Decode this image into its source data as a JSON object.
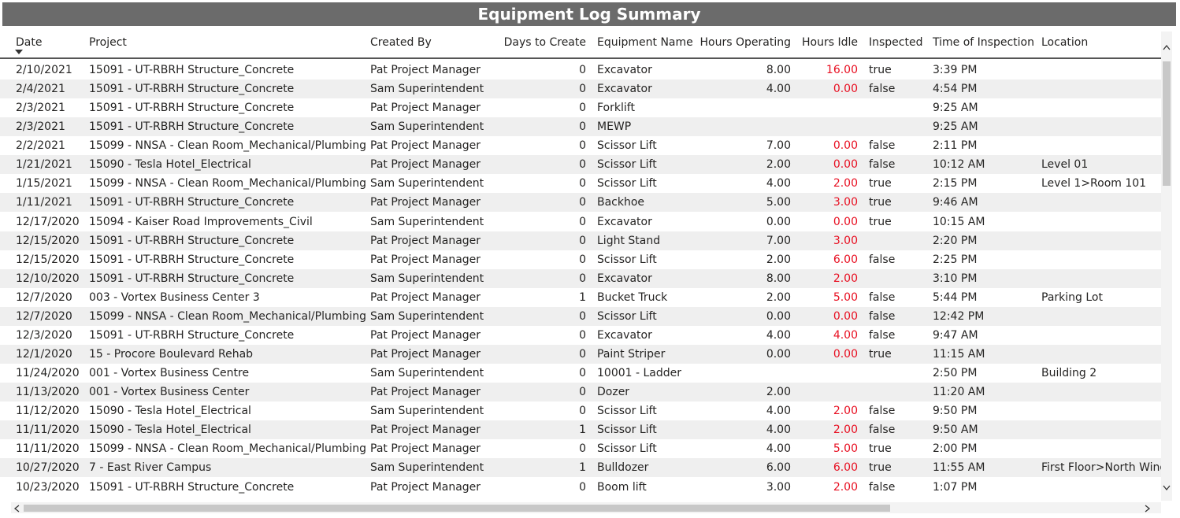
{
  "header": {
    "title": "Equipment Log Summary"
  },
  "table": {
    "columns": [
      "Date",
      "Project",
      "Created By",
      "Days to Create",
      "Equipment Name",
      "Hours Operating",
      "Hours Idle",
      "Inspected",
      "Time of Inspection",
      "Location"
    ],
    "rows": [
      [
        "2/10/2021",
        "15091 - UT-RBRH Structure_Concrete",
        "Pat Project Manager",
        "0",
        "Excavator",
        "8.00",
        "16.00",
        "true",
        "3:39 PM",
        null
      ],
      [
        "2/4/2021",
        "15091 - UT-RBRH Structure_Concrete",
        "Sam Superintendent",
        "0",
        "Excavator",
        "4.00",
        "0.00",
        "false",
        "4:54 PM",
        null
      ],
      [
        "2/3/2021",
        "15091 - UT-RBRH Structure_Concrete",
        "Pat Project Manager",
        "0",
        "Forklift",
        null,
        null,
        null,
        "9:25 AM",
        null
      ],
      [
        "2/3/2021",
        "15091 - UT-RBRH Structure_Concrete",
        "Sam Superintendent",
        "0",
        "MEWP",
        null,
        null,
        null,
        "9:25 AM",
        null
      ],
      [
        "2/2/2021",
        "15099 - NNSA - Clean Room_Mechanical/Plumbing",
        "Pat Project Manager",
        "0",
        "Scissor Lift",
        "7.00",
        "0.00",
        "false",
        "2:11 PM",
        null
      ],
      [
        "1/21/2021",
        "15090 - Tesla Hotel_Electrical",
        "Pat Project Manager",
        "0",
        "Scissor Lift",
        "2.00",
        "0.00",
        "false",
        "10:12 AM",
        "Level 01"
      ],
      [
        "1/15/2021",
        "15099 - NNSA - Clean Room_Mechanical/Plumbing",
        "Sam Superintendent",
        "0",
        "Scissor Lift",
        "4.00",
        "2.00",
        "true",
        "2:15 PM",
        "Level 1>Room 101"
      ],
      [
        "1/11/2021",
        "15091 - UT-RBRH Structure_Concrete",
        "Pat Project Manager",
        "0",
        "Backhoe",
        "5.00",
        "3.00",
        "true",
        "9:46 AM",
        null
      ],
      [
        "12/17/2020",
        "15094 - Kaiser Road Improvements_Civil",
        "Sam Superintendent",
        "0",
        "Excavator",
        "0.00",
        "0.00",
        "true",
        "10:15 AM",
        null
      ],
      [
        "12/15/2020",
        "15091 - UT-RBRH Structure_Concrete",
        "Pat Project Manager",
        "0",
        "Light Stand",
        "7.00",
        "3.00",
        null,
        "2:20 PM",
        null
      ],
      [
        "12/15/2020",
        "15091 - UT-RBRH Structure_Concrete",
        "Pat Project Manager",
        "0",
        "Scissor Lift",
        "2.00",
        "6.00",
        "false",
        "2:25 PM",
        null
      ],
      [
        "12/10/2020",
        "15091 - UT-RBRH Structure_Concrete",
        "Sam Superintendent",
        "0",
        "Excavator",
        "8.00",
        "2.00",
        null,
        "3:10 PM",
        null
      ],
      [
        "12/7/2020",
        "003 - Vortex Business Center 3",
        "Pat Project Manager",
        "1",
        "Bucket Truck",
        "2.00",
        "5.00",
        "false",
        "5:44 PM",
        "Parking Lot"
      ],
      [
        "12/7/2020",
        "15099 - NNSA - Clean Room_Mechanical/Plumbing",
        "Sam Superintendent",
        "0",
        "Scissor Lift",
        "0.00",
        "0.00",
        "false",
        "12:42 PM",
        null
      ],
      [
        "12/3/2020",
        "15091 - UT-RBRH Structure_Concrete",
        "Pat Project Manager",
        "0",
        "Excavator",
        "4.00",
        "4.00",
        "false",
        "9:47 AM",
        null
      ],
      [
        "12/1/2020",
        "15 - Procore Boulevard Rehab",
        "Pat Project Manager",
        "0",
        "Paint Striper",
        "0.00",
        "0.00",
        "true",
        "11:15 AM",
        null
      ],
      [
        "11/24/2020",
        "001 - Vortex Business Centre",
        "Sam Superintendent",
        "0",
        "10001 - Ladder",
        null,
        null,
        null,
        "2:50 PM",
        "Building 2"
      ],
      [
        "11/13/2020",
        "001 - Vortex Business Center",
        "Pat Project Manager",
        "0",
        "Dozer",
        "2.00",
        null,
        null,
        "11:20 AM",
        null
      ],
      [
        "11/12/2020",
        "15090 - Tesla Hotel_Electrical",
        "Sam Superintendent",
        "0",
        "Scissor Lift",
        "4.00",
        "2.00",
        "false",
        "9:50 PM",
        null
      ],
      [
        "11/11/2020",
        "15090 - Tesla Hotel_Electrical",
        "Pat Project Manager",
        "1",
        "Scissor Lift",
        "4.00",
        "2.00",
        "false",
        "9:50 AM",
        null
      ],
      [
        "11/11/2020",
        "15099 - NNSA - Clean Room_Mechanical/Plumbing",
        "Pat Project Manager",
        "0",
        "Scissor Lift",
        "4.00",
        "5.00",
        "true",
        "2:00 PM",
        null
      ],
      [
        "10/27/2020",
        "7 - East River Campus",
        "Sam Superintendent",
        "1",
        "Bulldozer",
        "6.00",
        "6.00",
        "true",
        "11:55 AM",
        "First Floor>North Wing"
      ],
      [
        "10/23/2020",
        "15091 - UT-RBRH Structure_Concrete",
        "Pat Project Manager",
        "0",
        "Boom lift",
        "3.00",
        "2.00",
        "false",
        "1:07 PM",
        null
      ]
    ]
  }
}
